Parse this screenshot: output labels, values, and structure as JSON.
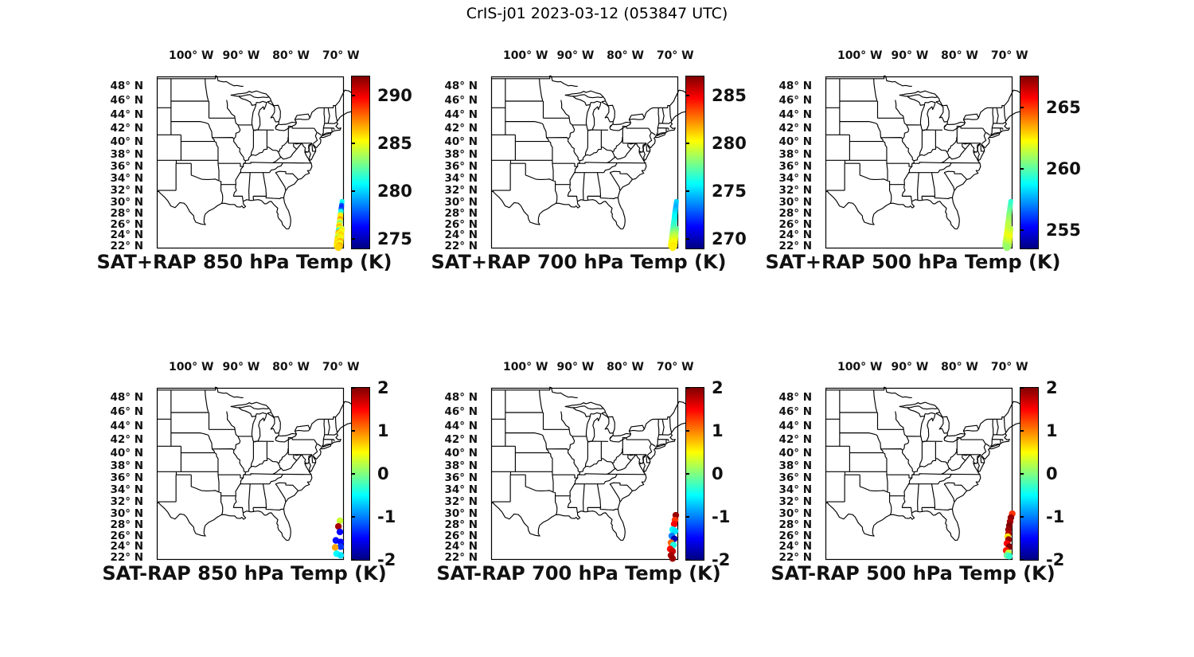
{
  "figure_title": "CrIS-j01 2023-03-12 (053847 UTC)",
  "chart_data": {
    "type": "scatter",
    "subtype": "geographic-map-panels",
    "projection": "mercator",
    "grid": "off",
    "map_extent": {
      "lon_min": -106.9,
      "lon_max": -69.4,
      "lat_min": 21.55,
      "lat_max": 49.3
    },
    "colormap": "jet",
    "lon_ticks": {
      "values": [
        -100,
        -90,
        -80,
        -70
      ],
      "labels": [
        "100° W",
        "90° W",
        "80° W",
        "70° W"
      ]
    },
    "lat_ticks": {
      "values": [
        48,
        46,
        44,
        42,
        40,
        38,
        36,
        34,
        32,
        30,
        28,
        26,
        24,
        22
      ],
      "labels": [
        "48° N",
        "46° N",
        "44° N",
        "42° N",
        "40° N",
        "38° N",
        "36° N",
        "34° N",
        "32° N",
        "30° N",
        "28° N",
        "26° N",
        "24° N",
        "22° N"
      ]
    },
    "panels": [
      {
        "title": "SAT+RAP 850 hPa Temp (K)",
        "row": 0,
        "col": 0,
        "colorbar": {
          "min": 274,
          "max": 292,
          "tick_values": [
            290,
            285,
            280,
            275
          ],
          "tick_labels": [
            "290",
            "285",
            "280",
            "275"
          ]
        },
        "points": [
          [
            30.1,
            -69.75,
            281
          ],
          [
            29.75,
            -69.8,
            280.5
          ],
          [
            29.4,
            -69.85,
            277.5
          ],
          [
            29.05,
            -69.9,
            277
          ],
          [
            28.7,
            -69.95,
            277.5
          ],
          [
            28.35,
            -70.0,
            280.5
          ],
          [
            28.0,
            -70.05,
            282
          ],
          [
            27.65,
            -70.1,
            285.5
          ],
          [
            27.3,
            -70.12,
            285.5
          ],
          [
            26.95,
            -70.15,
            287
          ],
          [
            26.6,
            -70.2,
            285
          ],
          [
            26.25,
            -70.25,
            283
          ],
          [
            25.9,
            -70.3,
            285.5
          ],
          [
            25.55,
            -70.32,
            286.5
          ],
          [
            25.2,
            -70.35,
            285
          ],
          [
            25.2,
            -69.85,
            284.5
          ],
          [
            24.85,
            -70.4,
            281
          ],
          [
            24.85,
            -69.9,
            285.5
          ],
          [
            24.5,
            -70.45,
            286.5
          ],
          [
            24.5,
            -69.95,
            285
          ],
          [
            24.1,
            -70.5,
            285.5
          ],
          [
            24.1,
            -70.0,
            286
          ],
          [
            23.7,
            -70.55,
            284
          ],
          [
            23.7,
            -70.05,
            285.5
          ],
          [
            23.3,
            -70.6,
            286
          ],
          [
            23.3,
            -70.1,
            285
          ],
          [
            22.9,
            -70.65,
            285.5
          ],
          [
            22.9,
            -70.15,
            286.5
          ],
          [
            22.5,
            -70.7,
            286
          ],
          [
            22.5,
            -70.2,
            285
          ],
          [
            22.1,
            -70.75,
            285.5
          ],
          [
            22.1,
            -70.25,
            286.5
          ],
          [
            21.75,
            -70.5,
            286
          ]
        ]
      },
      {
        "title": "SAT+RAP 700 hPa Temp (K)",
        "row": 0,
        "col": 1,
        "colorbar": {
          "min": 269,
          "max": 287,
          "tick_values": [
            285,
            280,
            275,
            270
          ],
          "tick_labels": [
            "285",
            "280",
            "275",
            "270"
          ]
        },
        "points": [
          [
            30.1,
            -69.75,
            275
          ],
          [
            29.75,
            -69.8,
            274.8
          ],
          [
            29.4,
            -69.85,
            274.5
          ],
          [
            29.05,
            -69.9,
            274.3
          ],
          [
            28.7,
            -69.95,
            274.6
          ],
          [
            28.35,
            -70.0,
            275
          ],
          [
            28.0,
            -70.05,
            275.3
          ],
          [
            27.65,
            -70.1,
            275.6
          ],
          [
            27.3,
            -70.12,
            275.8
          ],
          [
            26.95,
            -70.15,
            276
          ],
          [
            26.6,
            -70.2,
            276.2
          ],
          [
            26.25,
            -70.25,
            276.4
          ],
          [
            25.9,
            -70.3,
            276.6
          ],
          [
            25.55,
            -70.32,
            276.8
          ],
          [
            25.2,
            -70.35,
            277
          ],
          [
            25.2,
            -69.85,
            277.3
          ],
          [
            24.85,
            -70.4,
            277.6
          ],
          [
            24.85,
            -69.9,
            277.8
          ],
          [
            24.5,
            -70.45,
            278
          ],
          [
            24.5,
            -69.95,
            278.3
          ],
          [
            24.1,
            -70.5,
            278.6
          ],
          [
            24.1,
            -70.0,
            278.8
          ],
          [
            23.7,
            -70.55,
            279
          ],
          [
            23.7,
            -70.05,
            279.2
          ],
          [
            23.3,
            -70.6,
            279.4
          ],
          [
            23.3,
            -70.1,
            279.6
          ],
          [
            22.9,
            -70.65,
            279.8
          ],
          [
            22.9,
            -70.15,
            280
          ],
          [
            22.5,
            -70.7,
            280.1
          ],
          [
            22.5,
            -70.2,
            280.3
          ],
          [
            22.1,
            -70.75,
            280.4
          ],
          [
            22.1,
            -70.25,
            280.6
          ],
          [
            21.75,
            -70.5,
            280.5
          ]
        ]
      },
      {
        "title": "SAT+RAP 500 hPa Temp (K)",
        "row": 0,
        "col": 2,
        "colorbar": {
          "min": 253.5,
          "max": 267.5,
          "tick_values": [
            265,
            260,
            255
          ],
          "tick_labels": [
            "265",
            "260",
            "255"
          ]
        },
        "points": [
          [
            30.1,
            -69.75,
            259.3
          ],
          [
            29.75,
            -69.8,
            259.5
          ],
          [
            29.4,
            -69.85,
            259.6
          ],
          [
            29.05,
            -69.9,
            259.8
          ],
          [
            28.7,
            -69.95,
            260
          ],
          [
            28.35,
            -70.0,
            260.2
          ],
          [
            28.0,
            -70.05,
            260.4
          ],
          [
            27.65,
            -70.1,
            260.6
          ],
          [
            27.3,
            -70.12,
            260.8
          ],
          [
            26.95,
            -70.15,
            260.9
          ],
          [
            26.6,
            -70.2,
            261
          ],
          [
            26.25,
            -70.25,
            261.2
          ],
          [
            25.9,
            -70.3,
            261.3
          ],
          [
            25.55,
            -70.32,
            261.4
          ],
          [
            25.2,
            -70.35,
            261.5
          ],
          [
            25.2,
            -69.85,
            261.3
          ],
          [
            24.85,
            -70.4,
            261.6
          ],
          [
            24.85,
            -69.9,
            261.4
          ],
          [
            24.5,
            -70.45,
            261.9
          ],
          [
            24.5,
            -69.95,
            261.6
          ],
          [
            24.1,
            -70.5,
            262
          ],
          [
            24.1,
            -70.0,
            261.8
          ],
          [
            23.7,
            -70.55,
            261.9
          ],
          [
            23.7,
            -70.05,
            262.1
          ],
          [
            23.3,
            -70.6,
            261.7
          ],
          [
            23.3,
            -70.1,
            262
          ],
          [
            22.9,
            -70.65,
            261.5
          ],
          [
            22.9,
            -70.15,
            261.8
          ],
          [
            22.5,
            -70.7,
            261.2
          ],
          [
            22.5,
            -70.2,
            261.5
          ],
          [
            22.1,
            -70.75,
            260.9
          ],
          [
            22.1,
            -70.25,
            261.2
          ],
          [
            21.75,
            -70.5,
            260.8
          ]
        ]
      },
      {
        "title": "SAT-RAP 850 hPa Temp (K)",
        "row": 1,
        "col": 0,
        "colorbar": {
          "min": -2,
          "max": 2,
          "tick_values": [
            2,
            1,
            0,
            -1,
            -2
          ],
          "tick_labels": [
            "2",
            "1",
            "0",
            "-1",
            "-2"
          ]
        },
        "points": [
          [
            28.68,
            -70.2,
            0.3
          ],
          [
            27.68,
            -70.5,
            1.85
          ],
          [
            26.7,
            -70.2,
            -1.5
          ],
          [
            25.15,
            -71.0,
            -1.45
          ],
          [
            24.87,
            -70.05,
            -1.5
          ],
          [
            24.0,
            -70.05,
            -1.3
          ],
          [
            23.87,
            -71.15,
            0.85
          ],
          [
            22.7,
            -70.85,
            -0.5
          ],
          [
            22.4,
            -70.05,
            -0.6
          ]
        ]
      },
      {
        "title": "SAT-RAP 700 hPa Temp (K)",
        "row": 1,
        "col": 1,
        "colorbar": {
          "min": -2,
          "max": 2,
          "tick_values": [
            2,
            1,
            0,
            -1,
            -2
          ],
          "tick_labels": [
            "2",
            "1",
            "0",
            "-1",
            "-2"
          ]
        },
        "points": [
          [
            29.66,
            -69.88,
            1.9
          ],
          [
            28.82,
            -70.04,
            1.3
          ],
          [
            28.1,
            -70.2,
            1.5
          ],
          [
            27.1,
            -70.52,
            -0.5
          ],
          [
            26.84,
            -70.04,
            -0.6
          ],
          [
            25.97,
            -70.68,
            -1.0
          ],
          [
            25.44,
            -70.2,
            -1.8
          ],
          [
            24.73,
            -70.84,
            1.1
          ],
          [
            24.3,
            -70.36,
            -0.4
          ],
          [
            23.58,
            -71.0,
            1.5
          ],
          [
            23.15,
            -70.52,
            1.7
          ],
          [
            22.4,
            -70.84,
            1.85
          ],
          [
            21.8,
            -70.52,
            1.9
          ]
        ]
      },
      {
        "title": "SAT-RAP 500 hPa Temp (K)",
        "row": 1,
        "col": 2,
        "colorbar": {
          "min": -2,
          "max": 2,
          "tick_values": [
            2,
            1,
            0,
            -1,
            -2
          ],
          "tick_labels": [
            "2",
            "1",
            "0",
            "-1",
            "-2"
          ]
        },
        "points": [
          [
            29.93,
            -69.45,
            1.3
          ],
          [
            29.25,
            -69.72,
            1.9
          ],
          [
            28.55,
            -69.88,
            1.85
          ],
          [
            27.85,
            -70.04,
            2.0
          ],
          [
            27.1,
            -70.2,
            1.9
          ],
          [
            26.37,
            -70.2,
            1.8
          ],
          [
            25.85,
            -70.36,
            0.6
          ],
          [
            25.3,
            -70.2,
            1.9
          ],
          [
            24.6,
            -70.52,
            1.5
          ],
          [
            24.0,
            -70.04,
            2.0
          ],
          [
            23.3,
            -70.68,
            1.4
          ],
          [
            22.85,
            -70.2,
            0.3
          ],
          [
            22.4,
            -70.52,
            -0.1
          ],
          [
            22.25,
            -70.04,
            -0.3
          ]
        ]
      }
    ]
  }
}
